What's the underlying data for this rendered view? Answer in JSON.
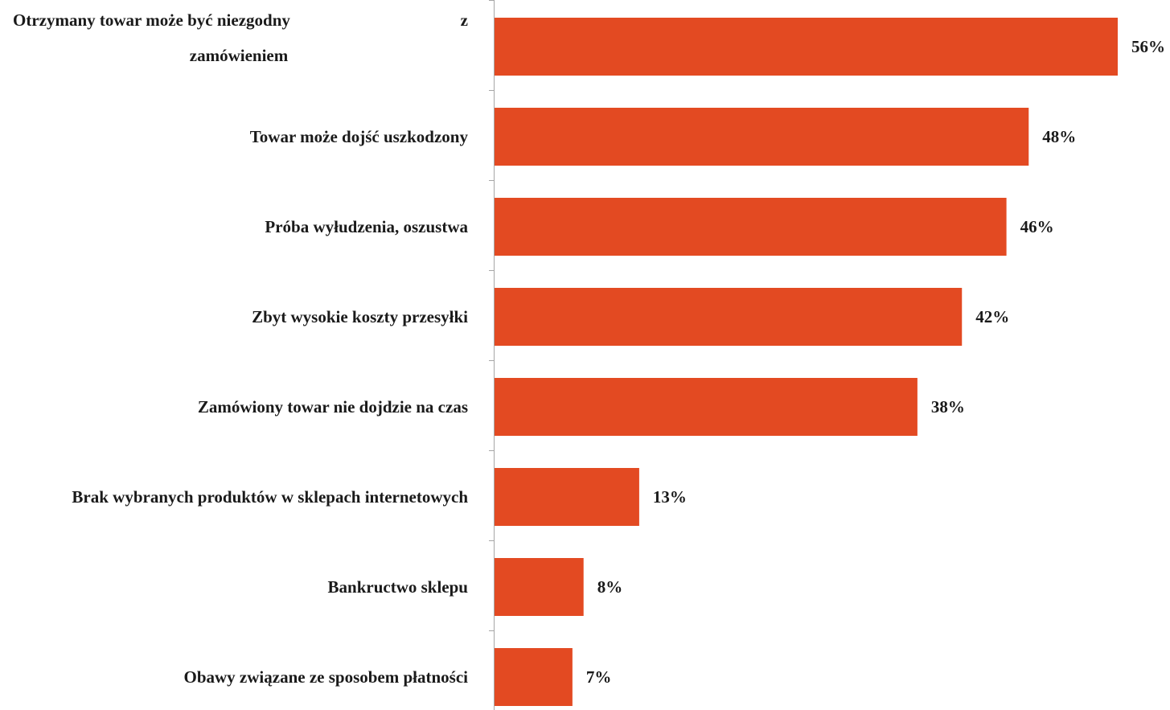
{
  "chart_data": {
    "type": "bar",
    "orientation": "horizontal",
    "categories": [
      "Otrzymany towar może być niezgodny z zamówieniem",
      "Towar może dojść uszkodzony",
      "Próba wyłudzenia, oszustwa",
      "Zbyt wysokie koszty przesyłki",
      "Zamówiony towar nie dojdzie na czas",
      "Brak wybranych produktów w sklepach internetowych",
      "Bankructwo sklepu",
      "Obawy związane ze sposobem płatności"
    ],
    "label_lines": [
      [
        "Otrzymany towar może być niezgodny",
        "z",
        "zamówieniem"
      ],
      [
        "Towar może dojść uszkodzony"
      ],
      [
        "Próba wyłudzenia, oszustwa"
      ],
      [
        "Zbyt wysokie koszty przesyłki"
      ],
      [
        "Zamówiony towar nie dojdzie na czas"
      ],
      [
        "Brak wybranych produktów w sklepach internetowych"
      ],
      [
        "Bankructwo sklepu"
      ],
      [
        "Obawy związane ze sposobem płatności"
      ]
    ],
    "values": [
      56,
      48,
      46,
      42,
      38,
      13,
      8,
      7
    ],
    "value_labels": [
      "56%",
      "48%",
      "46%",
      "42%",
      "38%",
      "13%",
      "8%",
      "7%"
    ],
    "unit": "%",
    "xlim": [
      0,
      60
    ],
    "title": "",
    "xlabel": "",
    "ylabel": "",
    "grid": false,
    "legend": "none",
    "bar_color": "#E34A22",
    "axis_color": "#A6A6A6"
  }
}
